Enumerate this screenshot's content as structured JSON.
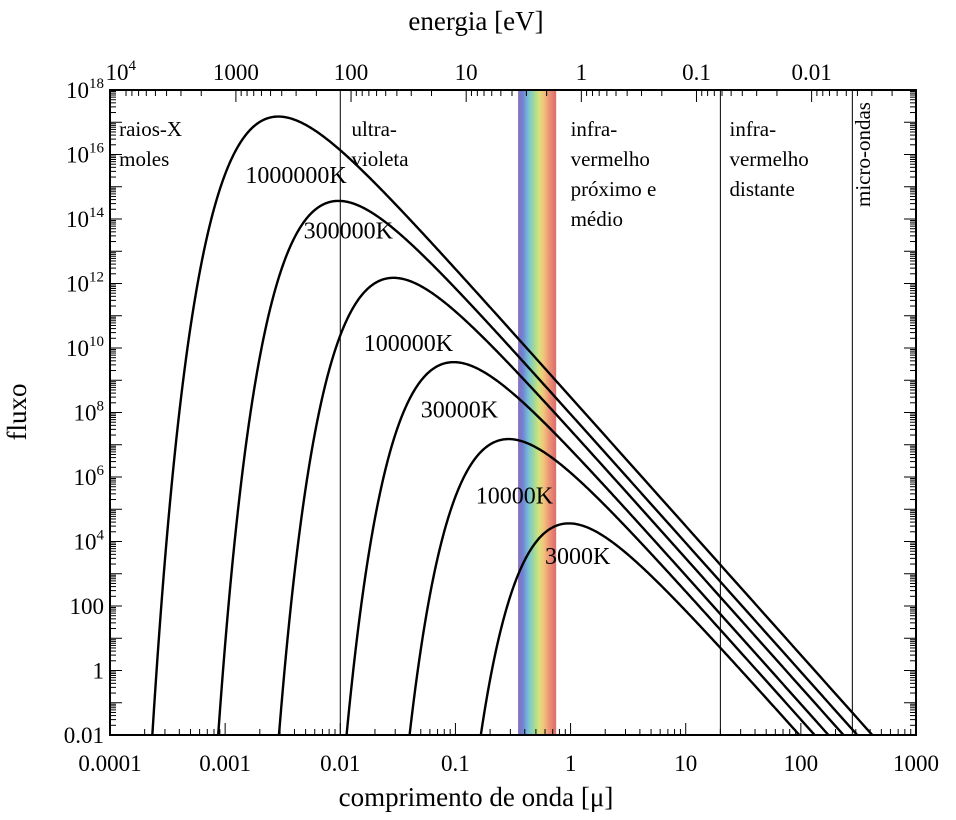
{
  "chart_data": {
    "type": "line",
    "title": "",
    "xlabel": "comprimento de onda [μ]",
    "ylabel": "fluxo",
    "top_axis_label": "energia [eV]",
    "x_scale": "log",
    "y_scale": "log",
    "xlim": [
      0.0001,
      1000
    ],
    "ylim": [
      0.01,
      1e+18
    ],
    "x_ticks": [
      {
        "value": 0.0001,
        "label": "0.0001"
      },
      {
        "value": 0.001,
        "label": "0.001"
      },
      {
        "value": 0.01,
        "label": "0.01"
      },
      {
        "value": 0.1,
        "label": "0.1"
      },
      {
        "value": 1,
        "label": "1"
      },
      {
        "value": 10,
        "label": "10"
      },
      {
        "value": 100,
        "label": "100"
      },
      {
        "value": 1000,
        "label": "1000"
      }
    ],
    "y_ticks": [
      {
        "value": 0.01,
        "base": "0.01",
        "exp": ""
      },
      {
        "value": 1,
        "base": "1",
        "exp": ""
      },
      {
        "value": 100,
        "base": "100",
        "exp": ""
      },
      {
        "value": 10000.0,
        "base": "10",
        "exp": "4"
      },
      {
        "value": 1000000.0,
        "base": "10",
        "exp": "6"
      },
      {
        "value": 100000000.0,
        "base": "10",
        "exp": "8"
      },
      {
        "value": 10000000000.0,
        "base": "10",
        "exp": "10"
      },
      {
        "value": 1000000000000.0,
        "base": "10",
        "exp": "12"
      },
      {
        "value": 100000000000000.0,
        "base": "10",
        "exp": "14"
      },
      {
        "value": 1e+16,
        "base": "10",
        "exp": "16"
      },
      {
        "value": 1e+18,
        "base": "10",
        "exp": "18"
      }
    ],
    "top_ticks": [
      {
        "value": 10000,
        "base": "10",
        "exp": "4"
      },
      {
        "value": 1000,
        "base": "1000",
        "exp": ""
      },
      {
        "value": 100,
        "base": "100",
        "exp": ""
      },
      {
        "value": 10,
        "base": "10",
        "exp": ""
      },
      {
        "value": 1,
        "base": "1",
        "exp": ""
      },
      {
        "value": 0.1,
        "base": "0.1",
        "exp": ""
      },
      {
        "value": 0.01,
        "base": "0.01",
        "exp": ""
      }
    ],
    "region_dividers_x": [
      0.01,
      20,
      280
    ],
    "visible_band": {
      "from": 0.35,
      "to": 0.75
    },
    "regions": [
      {
        "lines": [
          "raios-X",
          "moles"
        ],
        "x": 0.00012,
        "rotate": false
      },
      {
        "lines": [
          "ultra-",
          "violeta"
        ],
        "x": 0.0125,
        "rotate": false
      },
      {
        "lines": [
          "infra-",
          "vermelho",
          "próximo e",
          "médio"
        ],
        "x": 1.0,
        "rotate": false
      },
      {
        "lines": [
          "infra-",
          "vermelho",
          "distante"
        ],
        "x": 24,
        "rotate": false
      },
      {
        "lines": [
          "micro-ondas"
        ],
        "x": 300,
        "rotate": true
      }
    ],
    "series": [
      {
        "name": "1000000K",
        "temperature": 1000000,
        "label_at": [
          0.0015,
          1300000000000000.0
        ]
      },
      {
        "name": "300000K",
        "temperature": 300000,
        "label_at": [
          0.0048,
          25000000000000.0
        ]
      },
      {
        "name": "100000K",
        "temperature": 100000,
        "label_at": [
          0.016,
          8000000000.0
        ]
      },
      {
        "name": "30000K",
        "temperature": 30000,
        "label_at": [
          0.05,
          70000000.0
        ]
      },
      {
        "name": "10000K",
        "temperature": 10000,
        "label_at": [
          0.15,
          150000.0
        ]
      },
      {
        "name": "3000K",
        "temperature": 3000,
        "label_at": [
          0.6,
          2000.0
        ]
      }
    ],
    "grid": false
  }
}
